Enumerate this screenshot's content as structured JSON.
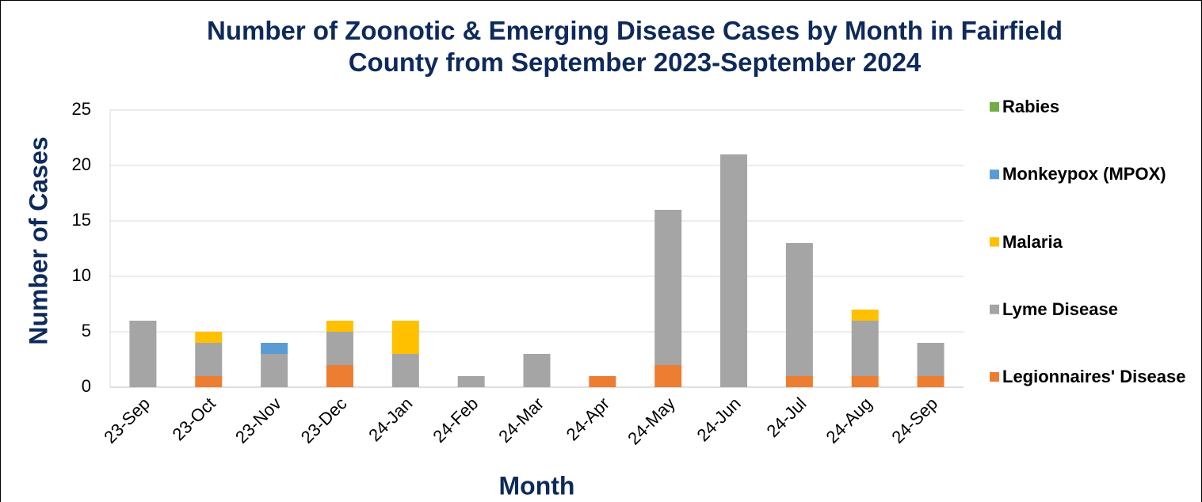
{
  "chart_data": {
    "type": "stacked_bar",
    "title": "Number of Zoonotic & Emerging Disease Cases by Month in Fairfield County from September 2023-September 2024",
    "x_label": "Month",
    "y_label": "Number of Cases",
    "categories": [
      "23-Sep",
      "23-Oct",
      "23-Nov",
      "23-Dec",
      "24-Jan",
      "24-Feb",
      "24-Mar",
      "24-Apr",
      "24-May",
      "24-Jun",
      "24-Jul",
      "24-Aug",
      "24-Sep"
    ],
    "series": [
      {
        "name": "Legionnaires' Disease",
        "color": "#ed7d31",
        "values": [
          0,
          1,
          0,
          2,
          0,
          0,
          0,
          1,
          2,
          0,
          1,
          1,
          1
        ]
      },
      {
        "name": "Lyme Disease",
        "color": "#a5a5a5",
        "values": [
          6,
          3,
          3,
          3,
          3,
          1,
          3,
          0,
          14,
          21,
          12,
          5,
          3
        ]
      },
      {
        "name": "Malaria",
        "color": "#ffc000",
        "values": [
          0,
          1,
          0,
          1,
          3,
          0,
          0,
          0,
          0,
          0,
          0,
          1,
          0
        ]
      },
      {
        "name": "Monkeypox (MPOX)",
        "color": "#5b9bd5",
        "values": [
          0,
          0,
          1,
          0,
          0,
          0,
          0,
          0,
          0,
          0,
          0,
          0,
          0
        ]
      },
      {
        "name": "Rabies",
        "color": "#70ad47",
        "values": [
          0,
          0,
          0,
          0,
          0,
          0,
          0,
          0,
          0,
          0,
          0,
          0,
          0
        ]
      }
    ],
    "ylim": [
      0,
      25
    ],
    "yticks": [
      0,
      5,
      10,
      15,
      20,
      25
    ],
    "grid": true,
    "legend": "right"
  }
}
